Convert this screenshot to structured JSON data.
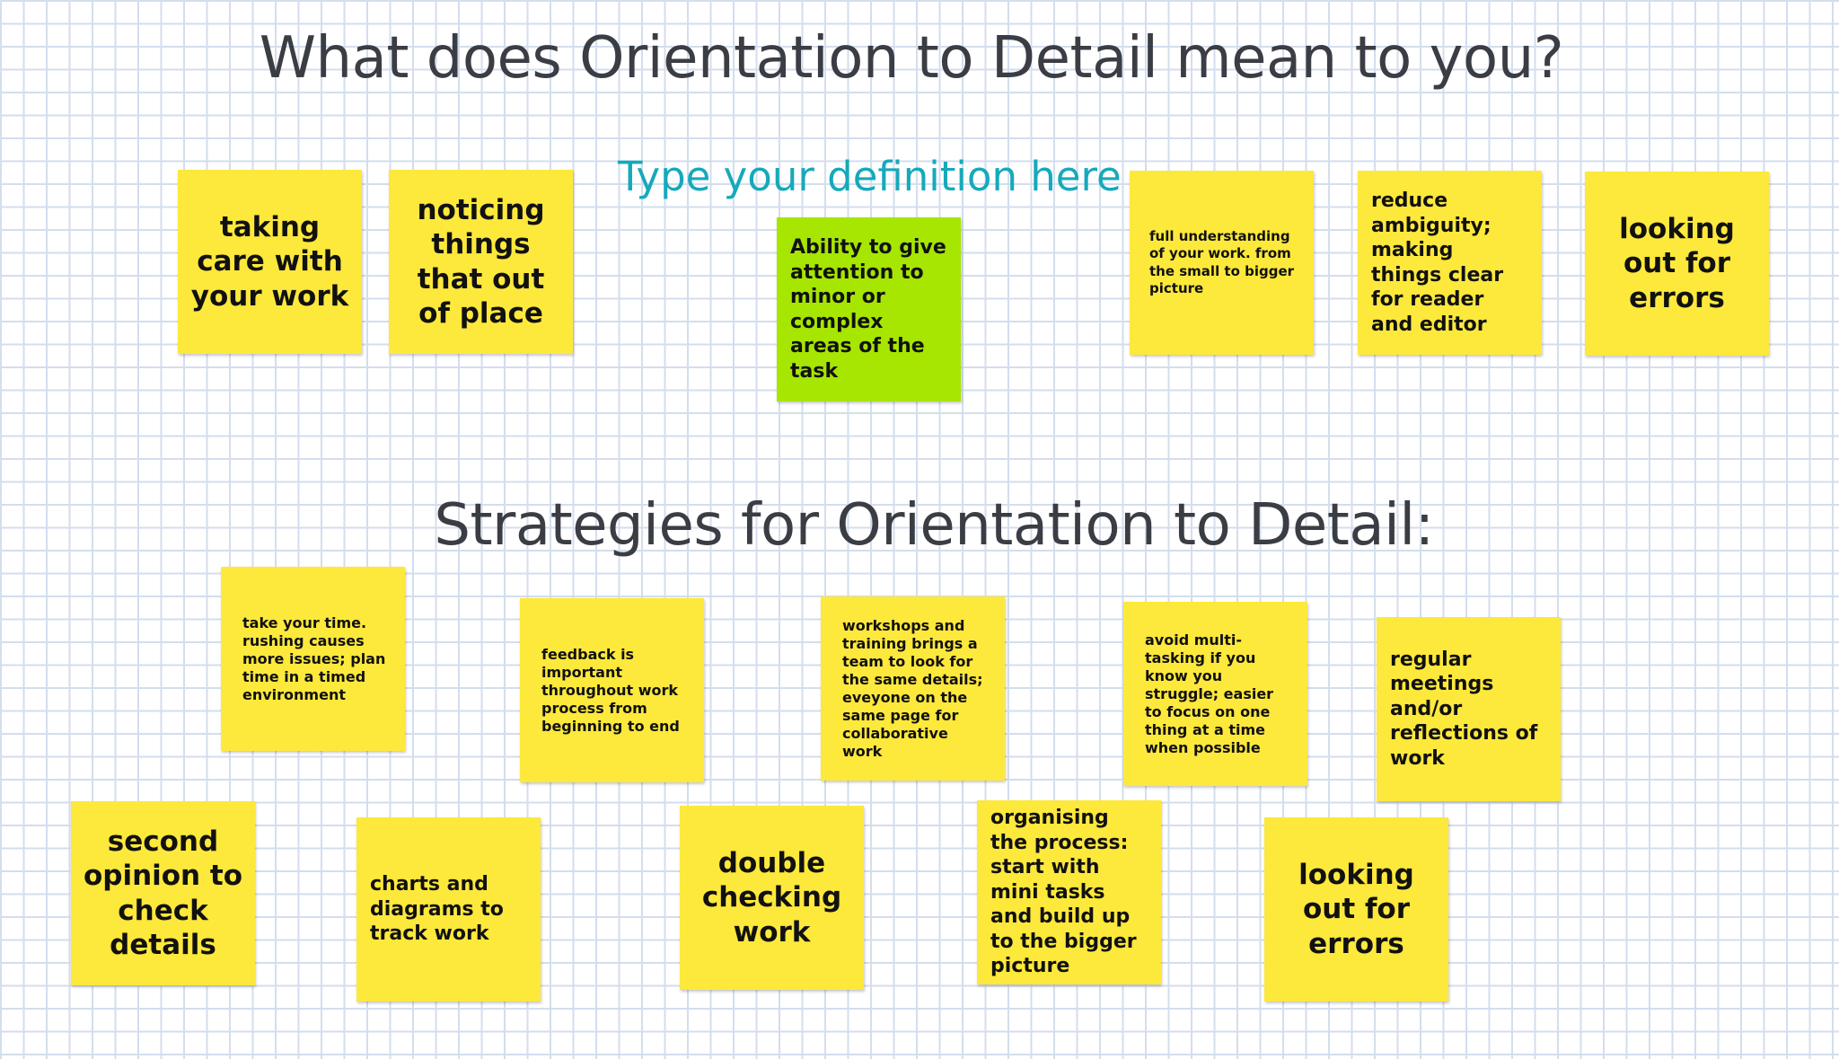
{
  "board": {
    "title": "What does Orientation to Detail mean to you?",
    "prompt": "Type your definition here",
    "subtitle": "Strategies for Orientation to Detail:"
  },
  "definition_notes": [
    {
      "text": "taking care with your work",
      "color": "#fde83c"
    },
    {
      "text": "noticing things that out of place",
      "color": "#fde83c"
    },
    {
      "text": "Ability to give attention to minor or complex areas of the task",
      "color": "#a6e600"
    },
    {
      "text": "full understanding of your work. from the small to bigger picture",
      "color": "#fde83c"
    },
    {
      "text": "reduce ambiguity; making things clear for reader and editor",
      "color": "#fde83c"
    },
    {
      "text": "looking out for errors",
      "color": "#fde83c"
    }
  ],
  "strategy_notes": [
    {
      "text": "take your time. rushing causes more issues; plan time in a timed environment"
    },
    {
      "text": "feedback is important throughout work process from beginning to end"
    },
    {
      "text": "workshops and training brings a team to look for the same details; eveyone on the same page for collaborative work"
    },
    {
      "text": "avoid multi-tasking if you know you struggle; easier to focus on one thing at a time when possible"
    },
    {
      "text": "regular meetings and/or reflections of work"
    },
    {
      "text": "second opinion to check details"
    },
    {
      "text": "charts and diagrams to track work"
    },
    {
      "text": "double checking work"
    },
    {
      "text": "organising the process: start with mini tasks and build up to the bigger picture"
    },
    {
      "text": "looking out for errors"
    }
  ]
}
